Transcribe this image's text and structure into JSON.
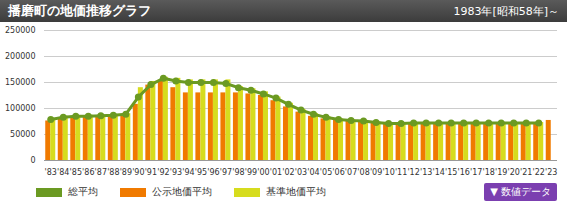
{
  "chart_data": {
    "type": "bar",
    "title": "播磨町の地価推移グラフ",
    "subtitle": "1983年[昭和58年]～",
    "annotations": [
      "▼ 数値データ"
    ],
    "categories": [
      "'83",
      "'84",
      "'85",
      "'86",
      "'87",
      "'88",
      "'89",
      "'90",
      "'91",
      "'92",
      "'93",
      "'94",
      "'95",
      "'96",
      "'97",
      "'98",
      "'99",
      "'00",
      "'01",
      "'02",
      "'03",
      "'04",
      "'05",
      "'06",
      "'07",
      "'08",
      "'09",
      "'10",
      "'11",
      "'12",
      "'13",
      "'14",
      "'15",
      "'16",
      "'17",
      "'18",
      "'19",
      "'20",
      "'21",
      "'22",
      "'23"
    ],
    "series": [
      {
        "name": "総平均",
        "type": "line",
        "marker": "circle",
        "color": "#6b9a22",
        "values": [
          79000,
          83000,
          85000,
          85000,
          86000,
          87000,
          89000,
          122000,
          146000,
          158000,
          153000,
          150000,
          150000,
          150000,
          148000,
          140000,
          135000,
          128000,
          120000,
          108000,
          97000,
          89000,
          83000,
          79000,
          77000,
          76000,
          73000,
          71000,
          71000,
          72000,
          72000,
          72000,
          72000,
          72000,
          72000,
          72000,
          72000,
          72000,
          72000,
          72000,
          null
        ]
      },
      {
        "name": "公示地価平均",
        "type": "bar",
        "color": "#f07a00",
        "values": [
          76000,
          80000,
          82000,
          83000,
          84000,
          85000,
          87000,
          108000,
          145000,
          152000,
          140000,
          130000,
          130000,
          130000,
          130000,
          130000,
          128000,
          125000,
          115000,
          103000,
          93000,
          85000,
          80000,
          77000,
          76000,
          75000,
          72000,
          70000,
          70000,
          71000,
          71000,
          71000,
          71000,
          71000,
          71000,
          71000,
          71000,
          71000,
          71000,
          71000,
          77000
        ]
      },
      {
        "name": "基準地価平均",
        "type": "bar",
        "color": "#d6dc1e",
        "values": [
          80000,
          85000,
          86000,
          87000,
          87000,
          88000,
          90000,
          140000,
          152000,
          160000,
          158000,
          155000,
          155000,
          155000,
          155000,
          142000,
          138000,
          132000,
          122000,
          110000,
          98000,
          90000,
          84000,
          80000,
          78000,
          77000,
          74000,
          72000,
          72000,
          72000,
          73000,
          73000,
          73000,
          73000,
          73000,
          73000,
          73000,
          73000,
          73000,
          73000,
          null
        ]
      }
    ],
    "ylim": [
      0,
      250000
    ],
    "yticks": [
      0,
      50000,
      100000,
      150000,
      200000,
      250000
    ],
    "grid": true,
    "legend": "bottom"
  }
}
